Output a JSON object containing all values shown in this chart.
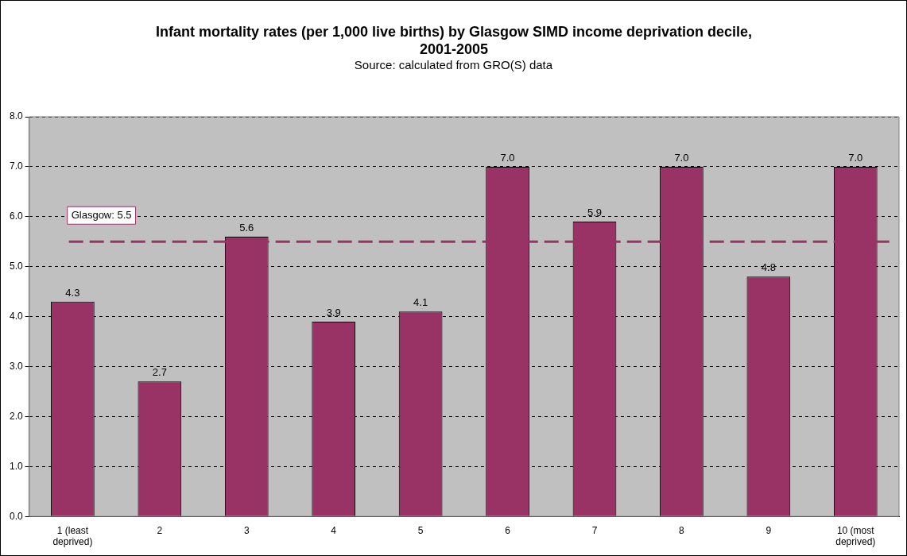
{
  "chart_data": {
    "type": "bar",
    "title": "Infant mortality rates (per 1,000 live births) by Glasgow SIMD income deprivation decile, 2001-2005",
    "subtitle": "Source: calculated from GRO(S) data",
    "categories": [
      "1 (least deprived)",
      "2",
      "3",
      "4",
      "5",
      "6",
      "7",
      "8",
      "9",
      "10 (most deprived)"
    ],
    "values": [
      4.3,
      2.7,
      5.6,
      3.9,
      4.1,
      7.0,
      5.9,
      7.0,
      4.8,
      7.0
    ],
    "value_labels": [
      "4.3",
      "2.7",
      "5.6",
      "3.9",
      "4.1",
      "7.0",
      "5.9",
      "7.0",
      "4.8",
      "7.0"
    ],
    "color": "#993366",
    "ylim": [
      0,
      8
    ],
    "yticks": [
      {
        "value": 0,
        "label": "0.0"
      },
      {
        "value": 1,
        "label": "1.0"
      },
      {
        "value": 2,
        "label": "2.0"
      },
      {
        "value": 3,
        "label": "3.0"
      },
      {
        "value": 4,
        "label": "4.0"
      },
      {
        "value": 5,
        "label": "5.0"
      },
      {
        "value": 6,
        "label": "6.0"
      },
      {
        "value": 7,
        "label": "7.0"
      },
      {
        "value": 8,
        "label": "8.0"
      }
    ],
    "grid": "y",
    "legend": false,
    "ref_lines": [
      {
        "axis": "y",
        "value": 5.5,
        "label": "Glasgow: 5.5",
        "color": "#993366",
        "line_style": "dashed"
      }
    ]
  }
}
